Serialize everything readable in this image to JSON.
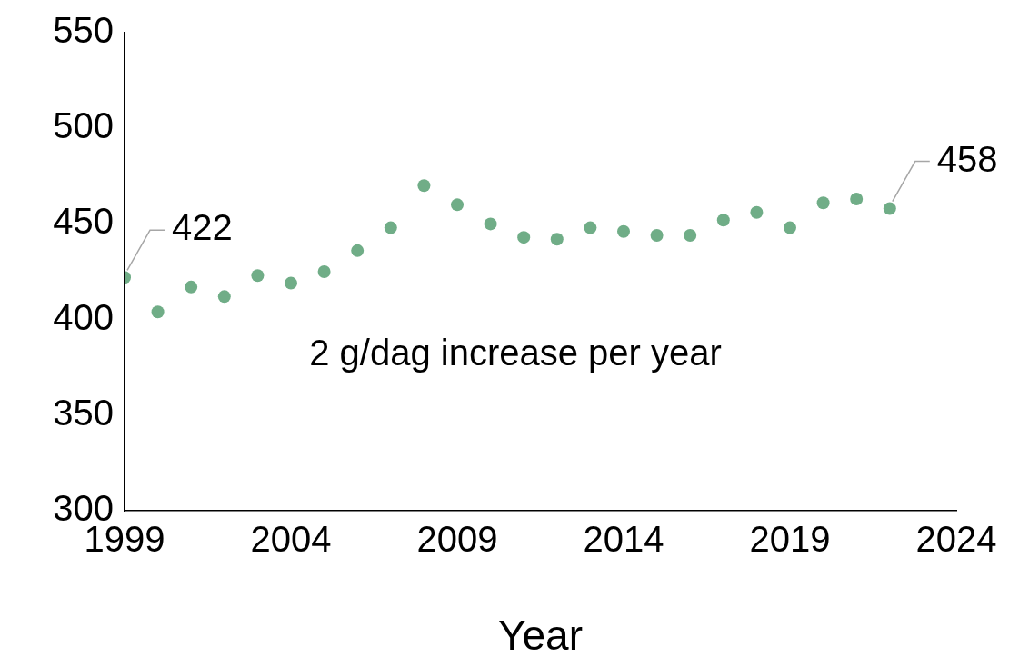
{
  "chart_data": {
    "type": "scatter",
    "xlabel": "Year",
    "annotations": [
      "2 g/dag increase per year"
    ],
    "x": [
      1999,
      2000,
      2001,
      2002,
      2003,
      2004,
      2005,
      2006,
      2007,
      2008,
      2009,
      2010,
      2011,
      2012,
      2013,
      2014,
      2015,
      2016,
      2017,
      2018,
      2019,
      2020,
      2021,
      2022
    ],
    "series": [
      {
        "color": "#70ad87",
        "values": [
          422,
          404,
          417,
          412,
          423,
          419,
          425,
          436,
          448,
          470,
          460,
          450,
          443,
          442,
          448,
          446,
          444,
          444,
          452,
          456,
          448,
          461,
          463,
          458
        ],
        "value_labels": [
          "422",
          null,
          null,
          null,
          null,
          null,
          null,
          null,
          null,
          null,
          null,
          null,
          null,
          null,
          null,
          null,
          null,
          null,
          null,
          null,
          null,
          null,
          null,
          "458"
        ]
      }
    ],
    "xlim": [
      1999,
      2024
    ],
    "xticks": [
      1999,
      2004,
      2009,
      2014,
      2019,
      2024
    ],
    "ylim": [
      300,
      550
    ],
    "yticks": [
      300,
      350,
      400,
      450,
      500,
      550
    ],
    "grid": false,
    "legend": false,
    "marker": "circle"
  }
}
